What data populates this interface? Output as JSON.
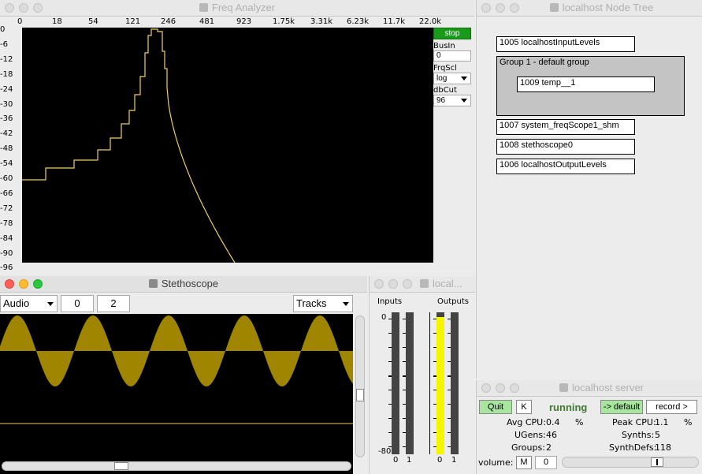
{
  "freq_analyzer": {
    "title": "Freq Analyzer",
    "freq_ticks": [
      "0",
      "18",
      "54",
      "121",
      "246",
      "481",
      "923",
      "1.75k",
      "3.31k",
      "6.23k",
      "11.7k",
      "22.0k"
    ],
    "db_ticks": [
      "0",
      "-6",
      "-12",
      "-18",
      "-24",
      "-30",
      "-36",
      "-42",
      "-48",
      "-54",
      "-60",
      "-66",
      "-72",
      "-78",
      "-84",
      "-90",
      "-96"
    ],
    "stop_label": "stop",
    "busin_label": "BusIn",
    "busin_value": "0",
    "frqscl_label": "FrqScl",
    "frqscl_value": "log",
    "dbcut_label": "dbCut",
    "dbcut_value": "96",
    "spectrum_color": "#f0d060"
  },
  "stethoscope": {
    "title": "Stethoscope",
    "rate_value": "Audio",
    "index_value": "0",
    "channels_value": "2",
    "view_value": "Tracks",
    "wave_color": "#a08600"
  },
  "level_meter": {
    "title": "local...",
    "inputs_label": "Inputs",
    "outputs_label": "Outputs",
    "top_db": "0",
    "bottom_db": "-80",
    "inputs_channels": [
      "0",
      "1"
    ],
    "outputs_channels": [
      "0",
      "1"
    ],
    "output_fill_color": "#f5f500"
  },
  "node_tree": {
    "title": "localhost Node Tree",
    "nodes": [
      "1005 localhostInputLevels",
      "Group 1 - default group",
      "1009 temp__1",
      "1007 system_freqScope1_shm",
      "1008 stethoscope0",
      "1006 localhostOutputLevels"
    ]
  },
  "server": {
    "title": "localhost server",
    "quit_label": "Quit",
    "k_label": "K",
    "status": "running",
    "default_label": "-> default",
    "record_label": "record >",
    "avg_cpu_label": "Avg CPU:",
    "avg_cpu_value": "0.4",
    "peak_cpu_label": "Peak CPU:",
    "peak_cpu_value": "1.1",
    "percent": "%",
    "ugens_label": "UGens:",
    "ugens_value": "46",
    "synths_label": "Synths:",
    "synths_value": "5",
    "groups_label": "Groups:",
    "groups_value": "2",
    "synthdefs_label": "SynthDefs:",
    "synthdefs_value": "118",
    "volume_label": "volume:",
    "m_label": "M",
    "volume_value": "0",
    "status_color": "#3d7a2e",
    "button_green": "#a8e6a0"
  }
}
